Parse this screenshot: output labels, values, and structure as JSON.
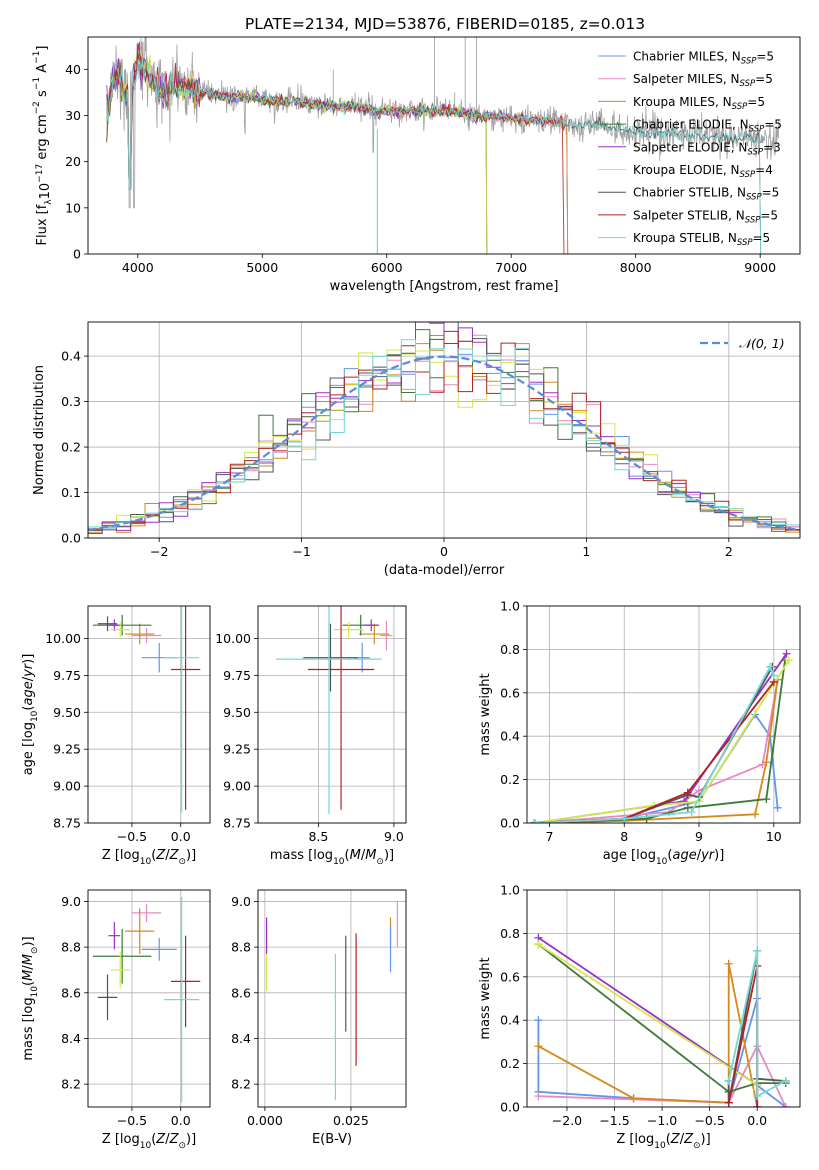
{
  "chart_data": [
    {
      "type": "line",
      "title": "PLATE=2134, MJD=53876, FIBERID=0185, z=0.013",
      "xlabel": "wavelength [Angstrom, rest frame]",
      "ylabel": "Flux [f_λ 10^-17 erg cm^-2 s^-1 A^-1]",
      "xlim": [
        3600,
        9320
      ],
      "ylim": [
        0,
        47
      ],
      "xticks": [
        4000,
        5000,
        6000,
        7000,
        8000,
        9000
      ],
      "yticks": [
        0,
        10,
        20,
        30,
        40
      ],
      "legend_position": "top-right",
      "data_color": "#a0a0a0",
      "data_continuum": {
        "x": [
          3750,
          3800,
          3850,
          3900,
          3950,
          4000,
          4100,
          4200,
          4300,
          4400,
          4500,
          4700,
          4900,
          5100,
          5300,
          5500,
          5700,
          5900,
          6100,
          6300,
          6500,
          6700,
          6900,
          7100,
          7300,
          7500,
          7700,
          7900,
          8100,
          8300,
          8500,
          8700,
          8900,
          9100
        ],
        "y": [
          30,
          38,
          40,
          34,
          36,
          42,
          38,
          35,
          37,
          36,
          35,
          34,
          34,
          33,
          33,
          32,
          32,
          31,
          31,
          31,
          31,
          30,
          30,
          29,
          29,
          28,
          28,
          27,
          26,
          26,
          26,
          25,
          25,
          25
        ]
      },
      "series": [
        {
          "name": "Chabrier MILES, N_SSP=5",
          "color": "#6495ed",
          "end": 7450
        },
        {
          "name": "Salpeter MILES, N_SSP=5",
          "color": "#e78ac3",
          "end": 7450
        },
        {
          "name": "Kroupa MILES, N_SSP=5",
          "color": "#d48a1a",
          "end": 7450
        },
        {
          "name": "Chabrier ELODIE, N_SSP=5",
          "color": "#3c7a3c",
          "end": 6800
        },
        {
          "name": "Salpeter ELODIE, N_SSP=3",
          "color": "#9b30c8",
          "end": 6800
        },
        {
          "name": "Kroupa ELODIE, N_SSP=4",
          "color": "#d4e84a",
          "end": 6800
        },
        {
          "name": "Chabrier STELIB, N_SSP=5",
          "color": "#555555",
          "end": 9000
        },
        {
          "name": "Salpeter STELIB, N_SSP=5",
          "color": "#b22222",
          "end": 7420
        },
        {
          "name": "Kroupa STELIB, N_SSP=5",
          "color": "#76d7d7",
          "end": 9000
        }
      ]
    },
    {
      "type": "line",
      "xlabel": "(data-model)/error",
      "ylabel": "Normed distribution",
      "xlim": [
        -2.5,
        2.5
      ],
      "ylim": [
        0,
        0.475
      ],
      "xticks": [
        -2,
        -1,
        0,
        1,
        2
      ],
      "yticks": [
        0.0,
        0.1,
        0.2,
        0.3,
        0.4
      ],
      "grid": true,
      "legend_position": "top-right",
      "gaussian": {
        "label": "𝒩(0, 1)",
        "color": "#5b8bd6"
      },
      "histogram": {
        "bin_width": 0.1,
        "series_colors": [
          "#6495ed",
          "#e78ac3",
          "#d48a1a",
          "#3c7a3c",
          "#9b30c8",
          "#d4e84a",
          "#555555",
          "#b22222",
          "#76d7d7"
        ]
      }
    },
    {
      "type": "scatter",
      "xlabel": "Z [log10(Z/Z⊙)]",
      "ylabel": "age  [log10(age/yr)]",
      "xlim": [
        -0.95,
        0.3
      ],
      "ylim": [
        8.75,
        10.22
      ],
      "xticks": [
        -0.5,
        0.0
      ],
      "yticks": [
        8.75,
        9.0,
        9.25,
        9.5,
        9.75,
        10.0
      ],
      "grid": true,
      "points": [
        {
          "x": -0.22,
          "y": 9.87,
          "xerr": 0.18,
          "yerr": 0.1,
          "color": "#6495ed"
        },
        {
          "x": -0.35,
          "y": 10.02,
          "xerr": 0.15,
          "yerr": 0.05,
          "color": "#e78ac3"
        },
        {
          "x": -0.42,
          "y": 10.03,
          "xerr": 0.15,
          "yerr": 0.07,
          "color": "#d48a1a"
        },
        {
          "x": -0.6,
          "y": 10.09,
          "xerr": 0.3,
          "yerr": 0.07,
          "color": "#3c7a3c"
        },
        {
          "x": -0.68,
          "y": 10.09,
          "xerr": 0.06,
          "yerr": 0.04,
          "color": "#9b30c8"
        },
        {
          "x": -0.62,
          "y": 10.06,
          "xerr": 0.1,
          "yerr": 0.05,
          "color": "#d4e84a"
        },
        {
          "x": -0.75,
          "y": 10.1,
          "xerr": 0.1,
          "yerr": 0.05,
          "color": "#555555"
        },
        {
          "x": 0.05,
          "y": 9.79,
          "xerr": 0.15,
          "yerr": 0.95,
          "color": "#b22222"
        },
        {
          "x": 0.01,
          "y": 9.87,
          "xerr": 0.18,
          "yerr": 1.05,
          "color": "#76d7d7"
        }
      ]
    },
    {
      "type": "scatter",
      "xlabel": "mass [log10(M/M⊙)]",
      "ylabel": "",
      "xlim": [
        8.1,
        9.08
      ],
      "ylim": [
        8.75,
        10.22
      ],
      "xticks": [
        8.5,
        9.0
      ],
      "yticks": [
        8.75,
        9.0,
        9.25,
        9.5,
        9.75,
        10.0
      ],
      "grid": true,
      "points": [
        {
          "x": 8.79,
          "y": 9.87,
          "xerr": 0.05,
          "yerr": 0.1,
          "color": "#6495ed"
        },
        {
          "x": 8.95,
          "y": 10.02,
          "xerr": 0.04,
          "yerr": 0.1,
          "color": "#e78ac3"
        },
        {
          "x": 8.87,
          "y": 10.03,
          "xerr": 0.1,
          "yerr": 0.07,
          "color": "#d48a1a"
        },
        {
          "x": 8.78,
          "y": 10.09,
          "xerr": 0.12,
          "yerr": 0.07,
          "color": "#3c7a3c"
        },
        {
          "x": 8.85,
          "y": 10.09,
          "xerr": 0.05,
          "yerr": 0.04,
          "color": "#9b30c8"
        },
        {
          "x": 8.7,
          "y": 10.06,
          "xerr": 0.1,
          "yerr": 0.05,
          "color": "#d4e84a"
        },
        {
          "x": 8.58,
          "y": 9.87,
          "xerr": 0.18,
          "yerr": 0.23,
          "color": "#555555"
        },
        {
          "x": 8.65,
          "y": 9.79,
          "xerr": 0.22,
          "yerr": 0.95,
          "color": "#b22222"
        },
        {
          "x": 8.57,
          "y": 9.86,
          "xerr": 0.35,
          "yerr": 1.05,
          "color": "#76d7d7"
        }
      ]
    },
    {
      "type": "line",
      "xlabel": "age  [log10(age/yr)]",
      "ylabel": "mass weight",
      "xlim": [
        6.7,
        10.35
      ],
      "ylim": [
        0,
        1.0
      ],
      "xticks": [
        7,
        8,
        9,
        10
      ],
      "yticks": [
        0.0,
        0.2,
        0.4,
        0.6,
        0.8,
        1.0
      ],
      "grid": true,
      "series": [
        {
          "color": "#6495ed",
          "x": [
            6.8,
            8.0,
            9.0,
            9.75,
            9.95,
            10.05
          ],
          "y": [
            0.0,
            0.02,
            0.1,
            0.5,
            0.4,
            0.07
          ]
        },
        {
          "color": "#e78ac3",
          "x": [
            6.8,
            8.6,
            9.0,
            9.85,
            10.05
          ],
          "y": [
            0.0,
            0.05,
            0.15,
            0.27,
            0.66
          ]
        },
        {
          "color": "#d48a1a",
          "x": [
            6.8,
            8.0,
            9.75,
            9.9,
            10.05
          ],
          "y": [
            0.0,
            0.01,
            0.04,
            0.28,
            0.66
          ]
        },
        {
          "color": "#3c7a3c",
          "x": [
            6.8,
            8.3,
            8.85,
            9.9,
            10.15
          ],
          "y": [
            0.0,
            0.02,
            0.07,
            0.11,
            0.75
          ]
        },
        {
          "color": "#9b30c8",
          "x": [
            6.8,
            8.8,
            10.17
          ],
          "y": [
            0.0,
            0.1,
            0.78
          ]
        },
        {
          "color": "#d4e84a",
          "x": [
            6.8,
            8.4,
            9.0,
            10.2
          ],
          "y": [
            0.0,
            0.08,
            0.1,
            0.75
          ]
        },
        {
          "color": "#555555",
          "x": [
            6.8,
            8.0,
            8.85,
            9.0,
            9.98
          ],
          "y": [
            0.0,
            0.02,
            0.13,
            0.12,
            0.72
          ]
        },
        {
          "color": "#b22222",
          "x": [
            6.8,
            8.0,
            8.85,
            10.0
          ],
          "y": [
            0.0,
            0.02,
            0.14,
            0.65
          ]
        },
        {
          "color": "#76d7d7",
          "x": [
            6.8,
            8.0,
            8.9,
            9.95,
            10.0
          ],
          "y": [
            0.0,
            0.02,
            0.05,
            0.72,
            0.68
          ]
        }
      ]
    },
    {
      "type": "scatter",
      "xlabel": "Z [log10(Z/Z⊙)]",
      "ylabel": "mass [log10(M/M⊙)]",
      "xlim": [
        -0.95,
        0.3
      ],
      "ylim": [
        8.1,
        9.05
      ],
      "xticks": [
        -0.5,
        0.0
      ],
      "yticks": [
        8.2,
        8.4,
        8.6,
        8.8,
        9.0
      ],
      "grid": true,
      "points": [
        {
          "x": -0.22,
          "y": 8.79,
          "xerr": 0.18,
          "yerr": 0.05,
          "color": "#6495ed"
        },
        {
          "x": -0.35,
          "y": 8.95,
          "xerr": 0.15,
          "yerr": 0.04,
          "color": "#e78ac3"
        },
        {
          "x": -0.42,
          "y": 8.87,
          "xerr": 0.15,
          "yerr": 0.1,
          "color": "#d48a1a"
        },
        {
          "x": -0.6,
          "y": 8.76,
          "xerr": 0.3,
          "yerr": 0.12,
          "color": "#3c7a3c"
        },
        {
          "x": -0.68,
          "y": 8.85,
          "xerr": 0.06,
          "yerr": 0.06,
          "color": "#9b30c8"
        },
        {
          "x": -0.62,
          "y": 8.7,
          "xerr": 0.1,
          "yerr": 0.08,
          "color": "#d4e84a"
        },
        {
          "x": -0.75,
          "y": 8.58,
          "xerr": 0.1,
          "yerr": 0.1,
          "color": "#555555"
        },
        {
          "x": 0.05,
          "y": 8.65,
          "xerr": 0.15,
          "yerr": 0.2,
          "color": "#b22222"
        },
        {
          "x": 0.01,
          "y": 8.57,
          "xerr": 0.18,
          "yerr": 0.45,
          "color": "#76d7d7"
        }
      ]
    },
    {
      "type": "scatter",
      "xlabel": "E(B-V)",
      "ylabel": "",
      "xlim": [
        -0.002,
        0.041
      ],
      "ylim": [
        8.1,
        9.05
      ],
      "xticks": [
        0.0,
        0.025
      ],
      "yticks": [
        8.2,
        8.4,
        8.6,
        8.8,
        9.0
      ],
      "grid": true,
      "points": [
        {
          "x": 0.0005,
          "y": 8.85,
          "yerr": 0.08,
          "color": "#9b30c8"
        },
        {
          "x": 0.0005,
          "y": 8.69,
          "yerr": 0.08,
          "color": "#d4e84a"
        },
        {
          "x": 0.0205,
          "y": 8.45,
          "yerr": 0.32,
          "color": "#76d7d7"
        },
        {
          "x": 0.0235,
          "y": 8.64,
          "yerr": 0.21,
          "color": "#555555"
        },
        {
          "x": 0.0265,
          "y": 8.57,
          "yerr": 0.29,
          "color": "#b22222"
        },
        {
          "x": 0.0365,
          "y": 8.87,
          "yerr": 0.06,
          "color": "#d48a1a"
        },
        {
          "x": 0.0365,
          "y": 8.79,
          "yerr": 0.1,
          "color": "#6495ed"
        },
        {
          "x": 0.0385,
          "y": 8.9,
          "yerr": 0.1,
          "color": "#e78ac3"
        }
      ]
    },
    {
      "type": "line",
      "xlabel": "Z [log10(Z/Z⊙)]",
      "ylabel": "mass weight",
      "xlim": [
        -2.42,
        0.45
      ],
      "ylim": [
        0,
        1.0
      ],
      "xticks": [
        -2.0,
        -1.5,
        -1.0,
        -0.5,
        0.0
      ],
      "yticks": [
        0.0,
        0.2,
        0.4,
        0.6,
        0.8,
        1.0
      ],
      "grid": true,
      "series": [
        {
          "color": "#6495ed",
          "x": [
            -2.3,
            -2.3,
            -1.3,
            -0.3,
            0.0,
            0.0,
            0.3
          ],
          "y": [
            0.4,
            0.07,
            0.04,
            0.02,
            0.5,
            0.1,
            0.0
          ]
        },
        {
          "color": "#e78ac3",
          "x": [
            -2.3,
            -0.3,
            0.0,
            0.3
          ],
          "y": [
            0.05,
            0.02,
            0.28,
            0.0
          ]
        },
        {
          "color": "#d48a1a",
          "x": [
            -2.3,
            -1.3,
            -0.3,
            -0.3,
            0.0
          ],
          "y": [
            0.28,
            0.04,
            0.02,
            0.66,
            0.0
          ]
        },
        {
          "color": "#3c7a3c",
          "x": [
            -2.3,
            -0.3,
            0.0,
            0.3
          ],
          "y": [
            0.75,
            0.07,
            0.11,
            0.11
          ]
        },
        {
          "color": "#9b30c8",
          "x": [
            -2.3,
            0.0,
            0.0
          ],
          "y": [
            0.78,
            0.1,
            0.0
          ]
        },
        {
          "color": "#d4e84a",
          "x": [
            -2.3,
            0.0,
            0.0
          ],
          "y": [
            0.75,
            0.1,
            0.08
          ]
        },
        {
          "color": "#555555",
          "x": [
            -0.3,
            -0.3,
            0.0,
            0.0,
            0.3
          ],
          "y": [
            0.12,
            0.02,
            0.72,
            0.13,
            0.12
          ]
        },
        {
          "color": "#b22222",
          "x": [
            -0.3,
            0.0,
            0.0
          ],
          "y": [
            0.02,
            0.65,
            0.0
          ]
        },
        {
          "color": "#76d7d7",
          "x": [
            -0.3,
            0.0,
            0.0,
            0.3
          ],
          "y": [
            0.12,
            0.72,
            0.05,
            0.12
          ]
        }
      ]
    }
  ]
}
